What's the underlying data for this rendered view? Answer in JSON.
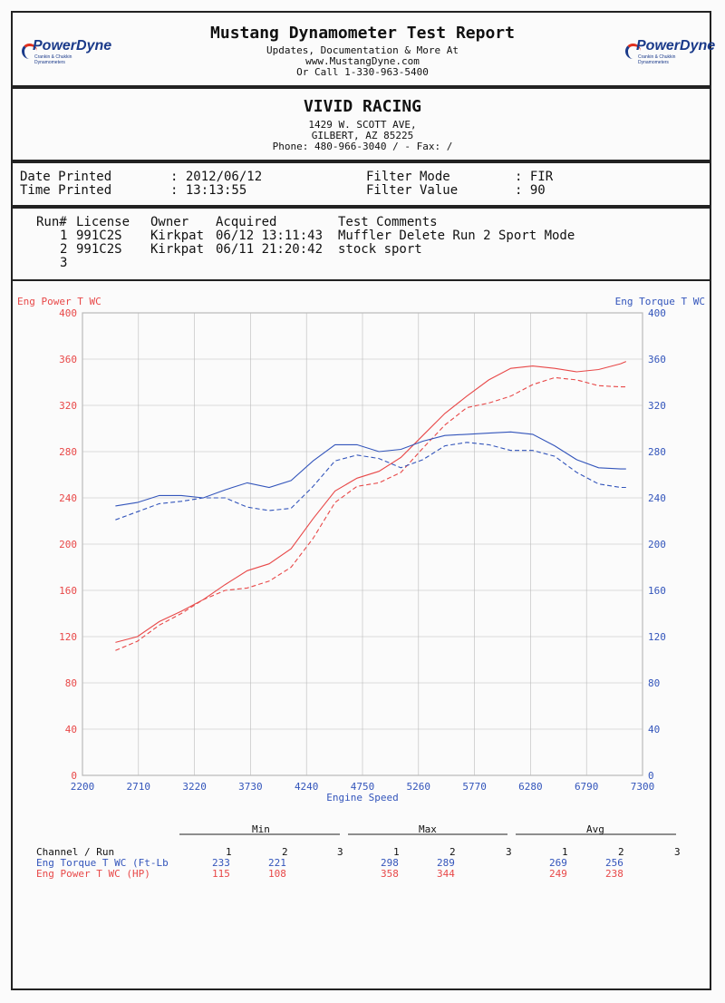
{
  "header": {
    "title": "Mustang Dynamometer Test Report",
    "line1": "Updates, Documentation & More At",
    "line2": "www.MustangDyne.com",
    "line3": "Or Call 1-330-963-5400",
    "logo_left": "PowerDyne",
    "logo_right": "PowerDyne",
    "logo_tag": "Crankin & Chukkin Dynamometers"
  },
  "shop": {
    "name": "VIVID RACING",
    "address": "1429 W. SCOTT AVE,",
    "city": "GILBERT, AZ  85225",
    "phone": "Phone: 480-966-3040 /  - Fax:  /"
  },
  "info": {
    "date_label": "Date Printed",
    "date_value": ": 2012/06/12",
    "time_label": "Time Printed",
    "time_value": ": 13:13:55",
    "filter_mode_label": "Filter Mode",
    "filter_mode_value": ": FIR",
    "filter_value_label": "Filter Value",
    "filter_value_value": ": 90"
  },
  "runs": {
    "headers": [
      "Run#",
      "License",
      "Owner",
      "Acquired",
      "Test Comments"
    ],
    "rows": [
      {
        "run": "1",
        "license": "991C2S",
        "owner": "Kirkpat",
        "acquired": "06/12 13:11:43",
        "comment": "Muffler Delete Run 2 Sport Mode"
      },
      {
        "run": "2",
        "license": "991C2S",
        "owner": "Kirkpat",
        "acquired": "06/11 21:20:42",
        "comment": "stock sport"
      },
      {
        "run": "3",
        "license": "",
        "owner": "",
        "acquired": "",
        "comment": ""
      }
    ]
  },
  "chart_data": {
    "type": "line",
    "xlabel": "Engine Speed",
    "ylabel_left": "Eng Power T WC",
    "ylabel_right": "Eng Torque T WC",
    "xlim": [
      2200,
      7300
    ],
    "ylim": [
      0,
      400
    ],
    "x_ticks": [
      "2200",
      "2710",
      "3220",
      "3730",
      "4240",
      "4750",
      "5260",
      "5770",
      "6280",
      "6790",
      "7300"
    ],
    "y_ticks": [
      "0",
      "40",
      "80",
      "120",
      "160",
      "200",
      "240",
      "280",
      "320",
      "360",
      "400"
    ],
    "colors": {
      "power": "#e84848",
      "torque": "#3355bb",
      "grid": "#bbbbbb"
    },
    "series": [
      {
        "name": "Eng Power T WC Run 1",
        "axis": "left",
        "style": "solid",
        "color": "#e84848",
        "x": [
          2500,
          2700,
          2900,
          3100,
          3300,
          3500,
          3700,
          3900,
          4100,
          4300,
          4500,
          4700,
          4900,
          5100,
          5300,
          5500,
          5700,
          5900,
          6100,
          6300,
          6500,
          6700,
          6900,
          7100,
          7150
        ],
        "y": [
          115,
          120,
          133,
          142,
          152,
          165,
          177,
          183,
          196,
          222,
          246,
          257,
          263,
          275,
          294,
          313,
          328,
          342,
          352,
          354,
          352,
          349,
          351,
          356,
          358
        ]
      },
      {
        "name": "Eng Power T WC Run 2",
        "axis": "left",
        "style": "dashed",
        "color": "#e84848",
        "x": [
          2500,
          2700,
          2900,
          3100,
          3300,
          3500,
          3700,
          3900,
          4100,
          4300,
          4500,
          4700,
          4900,
          5100,
          5300,
          5500,
          5700,
          5900,
          6100,
          6300,
          6500,
          6700,
          6900,
          7100,
          7150
        ],
        "y": [
          108,
          116,
          130,
          140,
          152,
          160,
          162,
          168,
          180,
          205,
          236,
          250,
          253,
          262,
          283,
          303,
          318,
          322,
          328,
          338,
          344,
          342,
          337,
          336,
          336
        ]
      },
      {
        "name": "Eng Torque T WC Run 1",
        "axis": "right",
        "style": "solid",
        "color": "#3355bb",
        "x": [
          2500,
          2700,
          2900,
          3100,
          3300,
          3500,
          3700,
          3900,
          4100,
          4300,
          4500,
          4700,
          4900,
          5100,
          5300,
          5500,
          5700,
          5900,
          6100,
          6300,
          6500,
          6700,
          6900,
          7100,
          7150
        ],
        "y": [
          233,
          236,
          242,
          242,
          240,
          247,
          253,
          249,
          255,
          272,
          286,
          286,
          280,
          282,
          289,
          294,
          295,
          296,
          297,
          295,
          285,
          273,
          266,
          265,
          265
        ]
      },
      {
        "name": "Eng Torque T WC Run 2",
        "axis": "right",
        "style": "dashed",
        "color": "#3355bb",
        "x": [
          2500,
          2700,
          2900,
          3100,
          3300,
          3500,
          3700,
          3900,
          4100,
          4300,
          4500,
          4700,
          4900,
          5100,
          5300,
          5500,
          5700,
          5900,
          6100,
          6300,
          6500,
          6700,
          6900,
          7100,
          7150
        ],
        "y": [
          221,
          228,
          235,
          237,
          240,
          240,
          232,
          229,
          231,
          250,
          272,
          277,
          274,
          266,
          273,
          285,
          288,
          286,
          281,
          281,
          276,
          262,
          252,
          249,
          249
        ]
      }
    ]
  },
  "stats": {
    "group_min": "Min",
    "group_max": "Max",
    "group_avg": "Avg",
    "channel_header": "Channel / Run",
    "run_cols": [
      "1",
      "2",
      "3"
    ],
    "rows": [
      {
        "label": "Eng Torque T WC (Ft-Lb",
        "min": [
          "233",
          "221",
          ""
        ],
        "max": [
          "298",
          "289",
          ""
        ],
        "avg": [
          "269",
          "256",
          ""
        ]
      },
      {
        "label": "Eng Power T WC (HP)",
        "min": [
          "115",
          "108",
          ""
        ],
        "max": [
          "358",
          "344",
          ""
        ],
        "avg": [
          "249",
          "238",
          ""
        ]
      }
    ]
  }
}
